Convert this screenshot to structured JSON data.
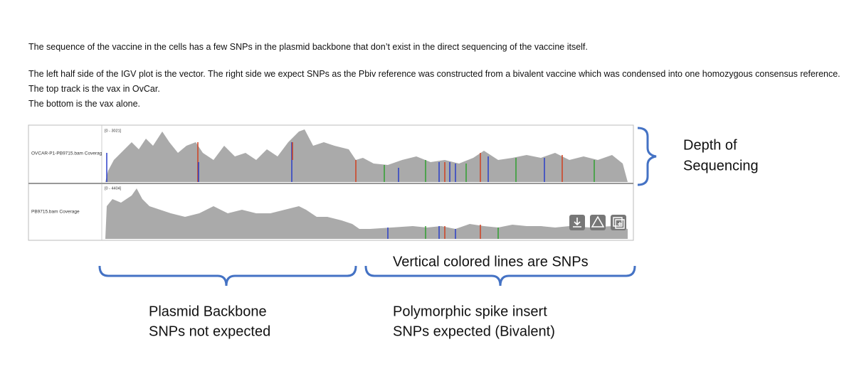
{
  "paragraphs": [
    "The sequence of the vaccine in the cells has a few SNPs in the plasmid backbone that don’t exist in the direct sequencing of the vaccine itself.",
    "The left half side of the IGV plot is the vector. The right side we expect SNPs as the Pbiv reference was constructed from a bivalent vaccine which was condensed into one homozygous consensus reference.",
    "The top track is the vax in OvCar.",
    "The bottom is the vax alone."
  ],
  "tracks": [
    {
      "label": "OVCAR-P1-PB9715.bam Coverag",
      "range": "[0 - 3021]"
    },
    {
      "label": "PB9715.bam Coverage",
      "range": "[0 - 4404]"
    }
  ],
  "annotations": {
    "depth": [
      "Depth of",
      "Sequencing"
    ],
    "snps": "Vertical colored lines are SNPs",
    "backbone": [
      "Plasmid Backbone",
      "SNPs not expected"
    ],
    "insert": [
      "Polymorphic spike insert",
      "SNPs expected (Bivalent)"
    ]
  }
}
